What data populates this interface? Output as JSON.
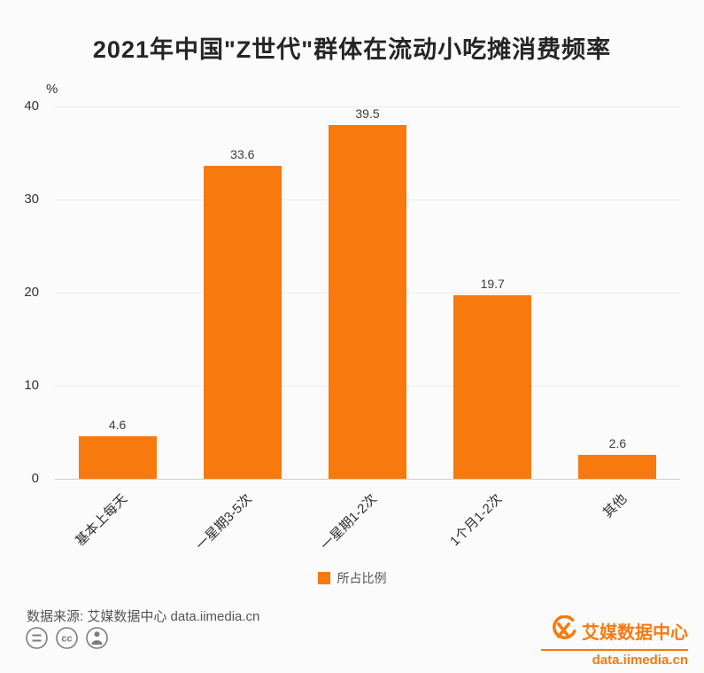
{
  "title": "2021年中国\"Z世代\"群体在流动小吃摊消费频率",
  "chart_data": {
    "type": "bar",
    "title": "2021年中国\"Z世代\"群体在流动小吃摊消费频率",
    "categories": [
      "基本上每天",
      "一星期3-5次",
      "一星期1-2次",
      "1个月1-2次",
      "其他"
    ],
    "values": [
      4.6,
      33.6,
      39.5,
      19.7,
      2.6
    ],
    "xlabel": "",
    "ylabel": "%",
    "ylim": [
      0,
      40
    ],
    "yticks": [
      0,
      10,
      20,
      30,
      40
    ],
    "grid": true,
    "legend_position": "bottom",
    "legend": [
      {
        "label": "所占比例",
        "color": "#F87A0E"
      }
    ],
    "bar_color": "#F87A0E",
    "value_labels_shown": true
  },
  "footer": {
    "source": "数据来源: 艾媒数据中心 data.iimedia.cn",
    "license_icons": [
      "equals-circle-icon",
      "cc-circle-icon",
      "person-circle-icon"
    ]
  },
  "branding": {
    "logo": "iimedia-logo",
    "name": "艾媒数据中心",
    "url": "data.iimedia.cn",
    "accent_color": "#F87A0E"
  }
}
